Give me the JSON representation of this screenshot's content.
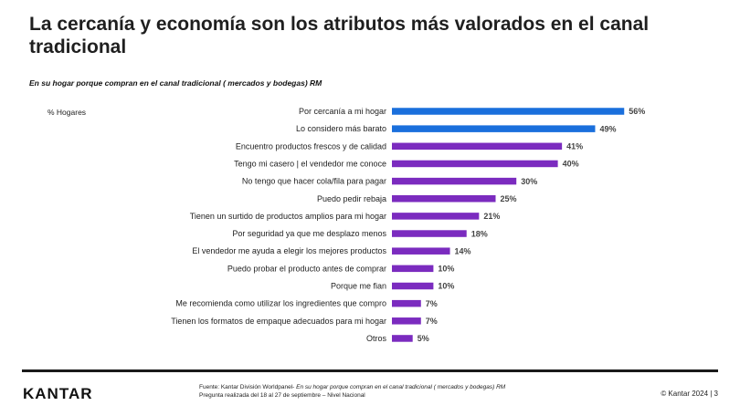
{
  "header": {
    "title": "La cercanía y economía son los atributos más valorados en el canal tradicional",
    "subtitle": "En su hogar porque compran en el canal tradicional ( mercados y bodegas) RM"
  },
  "colors": {
    "highlight": "#1a6fdc",
    "default": "#7b2bbf"
  },
  "chart_data": {
    "type": "bar",
    "orientation": "horizontal",
    "unit_label": "% Hogares",
    "categories": [
      "Por cercanía a mi hogar",
      "Lo considero más barato",
      "Encuentro productos frescos y de calidad",
      "Tengo mi casero | el vendedor me conoce",
      "No tengo que hacer cola/fila para pagar",
      "Puedo pedir rebaja",
      "Tienen un surtido de productos amplios para mi hogar",
      "Por seguridad ya que me desplazo menos",
      "El vendedor me ayuda a elegir los mejores productos",
      "Puedo probar el producto antes de comprar",
      "Porque me fian",
      "Me recomienda como utilizar los ingredientes que compro",
      "Tienen los formatos de empaque adecuados para mi hogar",
      "Otros"
    ],
    "values": [
      56,
      49,
      41,
      40,
      30,
      25,
      21,
      18,
      14,
      10,
      10,
      7,
      7,
      5
    ],
    "value_labels": [
      "56%",
      "49%",
      "41%",
      "40%",
      "30%",
      "25%",
      "21%",
      "18%",
      "14%",
      "10%",
      "10%",
      "7%",
      "7%",
      "5%"
    ],
    "highlighted": [
      true,
      true,
      false,
      false,
      false,
      false,
      false,
      false,
      false,
      false,
      false,
      false,
      false,
      false
    ]
  },
  "footer": {
    "logo": "KANTAR",
    "source_prefix": "Fuente: Kantar División Worldpanel- ",
    "source_italic": "En su hogar porque compran en el canal tradicional ( mercados y bodegas) RM",
    "source_line2": "Pregunta realizada del 18 al 27 de septiembre  – Nivel Nacional",
    "copyright": "© Kantar 2024 | 3"
  }
}
